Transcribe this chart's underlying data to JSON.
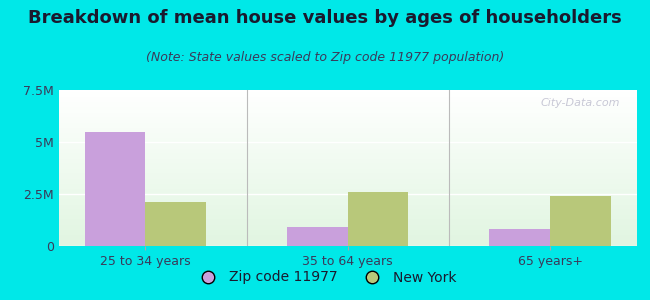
{
  "title": "Breakdown of mean house values by ages of householders",
  "subtitle": "(Note: State values scaled to Zip code 11977 population)",
  "categories": [
    "25 to 34 years",
    "35 to 64 years",
    "65 years+"
  ],
  "zip_values": [
    5500000,
    900000,
    800000
  ],
  "ny_values": [
    2100000,
    2600000,
    2400000
  ],
  "zip_color": "#c9a0dc",
  "ny_color": "#b8c87a",
  "background_outer": "#00e8e8",
  "ylim": [
    0,
    7500000
  ],
  "yticks": [
    0,
    2500000,
    5000000,
    7500000
  ],
  "ytick_labels": [
    "0",
    "2.5M",
    "5M",
    "7.5M"
  ],
  "legend_zip_label": "Zip code 11977",
  "legend_ny_label": "New York",
  "bar_width": 0.3,
  "title_fontsize": 13,
  "subtitle_fontsize": 9,
  "tick_fontsize": 9,
  "legend_fontsize": 10,
  "title_color": "#1a1a2e",
  "subtitle_color": "#3a3a5a",
  "tick_color": "#3a3a5a"
}
